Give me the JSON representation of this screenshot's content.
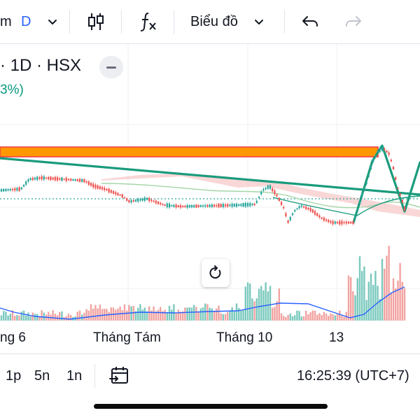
{
  "toolbar": {
    "symbol_tail": "m",
    "interval": "D",
    "chart_style_label": "Biểu đồ",
    "colors": {
      "accent": "#2962ff"
    }
  },
  "legend": {
    "symbol_line": "· 1D · HSX",
    "change_text": "3%)"
  },
  "chart": {
    "colors": {
      "up": "#26a69a",
      "down": "#ef5350",
      "trendline": "#1a9b7c",
      "zone_fill": "#ff9800",
      "zone_border": "#f23645",
      "volume_ma": "#2962ff",
      "cloud": "#f7c9c9"
    }
  },
  "x_axis": {
    "labels": [
      "ng 6",
      "Tháng Tám",
      "Tháng 10",
      "13"
    ]
  },
  "bottombar": {
    "intervals": [
      "1p",
      "5n",
      "1n"
    ],
    "clock": "16:25:39 (UTC+7)"
  }
}
